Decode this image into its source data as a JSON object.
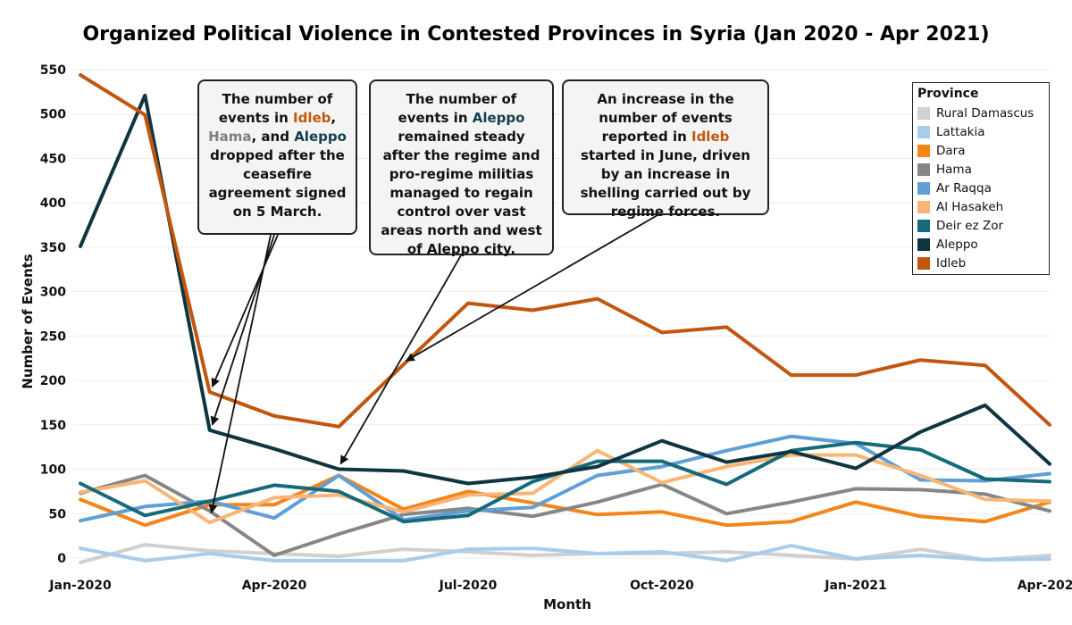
{
  "chart_data": {
    "type": "line",
    "title": "Organized Political Violence in Contested Provinces in Syria (Jan 2020 - Apr 2021)",
    "xlabel": "Month",
    "ylabel": "Number of Events",
    "ylim": [
      0,
      550
    ],
    "yticks": [
      0,
      50,
      100,
      150,
      200,
      250,
      300,
      350,
      400,
      450,
      500,
      550
    ],
    "xtick_labels": [
      "Jan-2020",
      "Apr-2020",
      "Jul-2020",
      "Oct-2020",
      "Jan-2021",
      "Apr-2021"
    ],
    "xtick_index": [
      0,
      3,
      6,
      9,
      12,
      15
    ],
    "legend_title": "Province",
    "months": [
      "Jan-2020",
      "Feb-2020",
      "Mar-2020",
      "Apr-2020",
      "May-2020",
      "Jun-2020",
      "Jul-2020",
      "Aug-2020",
      "Sep-2020",
      "Oct-2020",
      "Nov-2020",
      "Dec-2020",
      "Jan-2021",
      "Feb-2021",
      "Mar-2021",
      "Apr-2021"
    ],
    "series": [
      {
        "name": "Rural Damascus",
        "color": "#d0d0d0",
        "values": [
          -5,
          15,
          8,
          5,
          2,
          10,
          7,
          3,
          5,
          5,
          7,
          3,
          -1,
          10,
          -2,
          3
        ]
      },
      {
        "name": "Lattakia",
        "color": "#a8ccec",
        "values": [
          11,
          -3,
          5,
          -3,
          -3,
          -3,
          10,
          11,
          5,
          7,
          -3,
          14,
          -1,
          3,
          -2,
          -1
        ]
      },
      {
        "name": "Dara",
        "color": "#f58518",
        "values": [
          66,
          37,
          60,
          60,
          93,
          55,
          75,
          62,
          49,
          52,
          37,
          41,
          63,
          47,
          41,
          63
        ]
      },
      {
        "name": "Hama",
        "color": "#868686",
        "values": [
          73,
          93,
          53,
          3,
          27,
          49,
          56,
          47,
          63,
          83,
          50,
          63,
          78,
          77,
          72,
          53
        ]
      },
      {
        "name": "Ar Raqqa",
        "color": "#5f9fd6",
        "values": [
          42,
          58,
          64,
          45,
          93,
          43,
          53,
          57,
          93,
          103,
          121,
          137,
          129,
          88,
          87,
          95
        ]
      },
      {
        "name": "Al Hasakeh",
        "color": "#f9b575",
        "values": [
          74,
          87,
          40,
          68,
          71,
          52,
          71,
          73,
          121,
          85,
          103,
          116,
          116,
          93,
          66,
          64
        ]
      },
      {
        "name": "Deir ez Zor",
        "color": "#146a7a",
        "values": [
          84,
          48,
          64,
          82,
          75,
          41,
          48,
          86,
          109,
          109,
          83,
          121,
          130,
          122,
          89,
          86
        ]
      },
      {
        "name": "Aleppo",
        "color": "#0f3541",
        "values": [
          351,
          521,
          144,
          123,
          100,
          98,
          84,
          91,
          103,
          132,
          108,
          120,
          101,
          142,
          172,
          106
        ]
      },
      {
        "name": "Idleb",
        "color": "#c2560e",
        "values": [
          544,
          499,
          187,
          160,
          148,
          218,
          287,
          279,
          292,
          254,
          260,
          206,
          206,
          223,
          217,
          150
        ]
      }
    ],
    "annotations": [
      {
        "id": "a1",
        "target_month": "Mar-2020"
      },
      {
        "id": "a2",
        "target_month": "May-2020"
      },
      {
        "id": "a3",
        "target_month": "Jun-2020"
      }
    ]
  },
  "annotations_text": {
    "a1": {
      "p1": "The number of events in ",
      "idleb": "Idleb",
      "p2": ", ",
      "hama": "Hama",
      "p3": ", and ",
      "aleppo": "Aleppo",
      "p4": " dropped after the ceasefire agreement signed on 5 March."
    },
    "a2": {
      "p1": "The number of events in ",
      "aleppo": "Aleppo",
      "p2": " remained steady after the regime and pro-regime militias managed to regain control over vast areas north and west of Aleppo city."
    },
    "a3": {
      "p1": "An increase in the number of events reported in ",
      "idleb": "Idleb",
      "p2": " started in June, driven by an increase in shelling carried out by regime forces."
    }
  }
}
